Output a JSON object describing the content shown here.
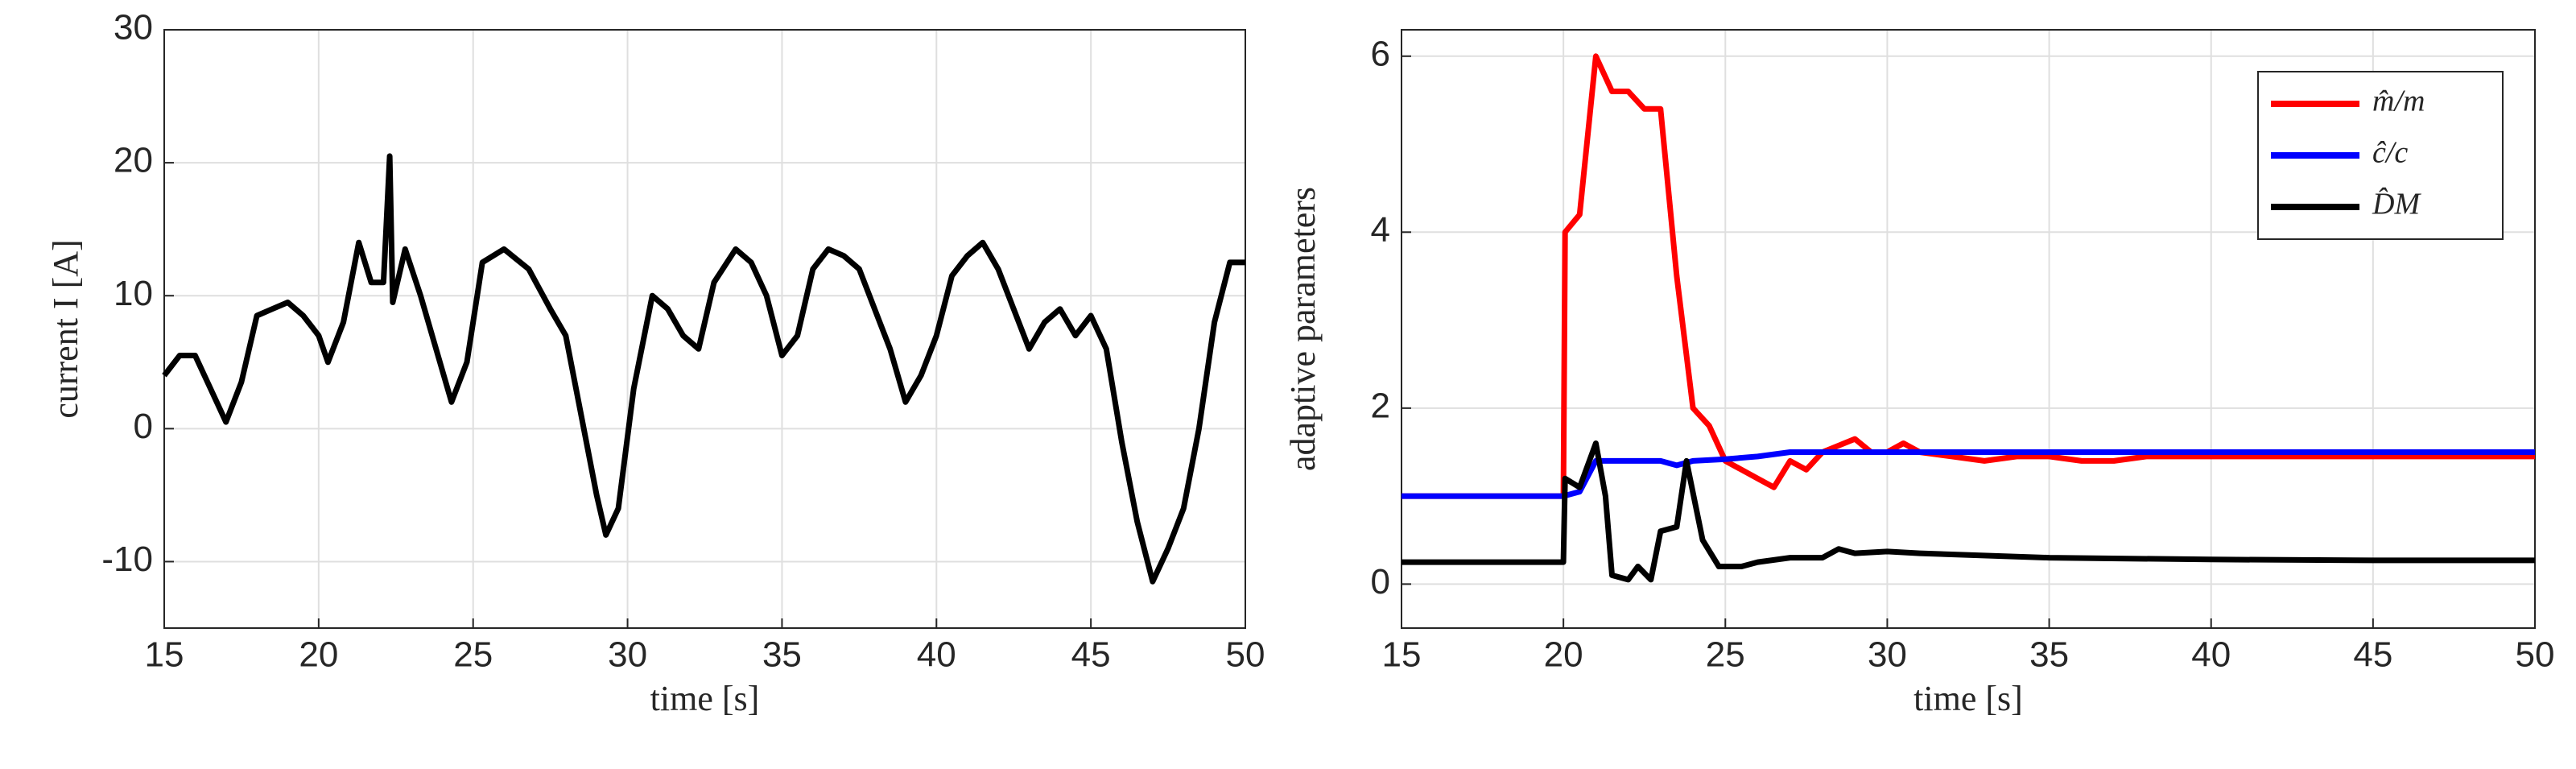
{
  "chart_data": [
    {
      "type": "line",
      "xlabel": "time [s]",
      "ylabel": "current I [A]",
      "xlim": [
        15,
        50
      ],
      "ylim": [
        -15,
        30
      ],
      "xticks": [
        15,
        20,
        25,
        30,
        35,
        40,
        45,
        50
      ],
      "yticks": [
        -10,
        0,
        10,
        20,
        30
      ],
      "grid": true,
      "series": [
        {
          "color": "#000000",
          "x": [
            15,
            15.5,
            16,
            16.5,
            17,
            17.5,
            18,
            18.5,
            19,
            19.5,
            20,
            20.3,
            20.8,
            21.3,
            21.7,
            22.1,
            22.3,
            22.4,
            22.8,
            23.3,
            23.8,
            24.3,
            24.8,
            25.3,
            26,
            26.8,
            27.5,
            28,
            28.5,
            29,
            29.3,
            29.7,
            30.2,
            30.8,
            31.3,
            31.8,
            32.3,
            32.8,
            33.5,
            34,
            34.5,
            35,
            35.5,
            36,
            36.5,
            37,
            37.5,
            38,
            38.5,
            39,
            39.5,
            40,
            40.5,
            41,
            41.5,
            42,
            42.5,
            43,
            43.5,
            44,
            44.5,
            45,
            45.5,
            46,
            46.5,
            47,
            47.5,
            48,
            48.5,
            49,
            49.5,
            50
          ],
          "values": [
            4,
            5.5,
            5.5,
            3,
            0.5,
            3.5,
            8.5,
            9,
            9.5,
            8.5,
            7,
            5,
            8,
            14,
            11,
            11,
            20.5,
            9.5,
            13.5,
            10,
            6,
            2,
            5,
            12.5,
            13.5,
            12,
            9,
            7,
            1,
            -5,
            -8,
            -6,
            3,
            10,
            9,
            7,
            6,
            11,
            13.5,
            12.5,
            10,
            5.5,
            7,
            12,
            13.5,
            13,
            12,
            9,
            6,
            2,
            4,
            7,
            11.5,
            13,
            14,
            12,
            9,
            6,
            8,
            9,
            7,
            8.5,
            6,
            -1,
            -7,
            -11.5,
            -9,
            -6,
            0,
            8,
            12.5,
            12.5
          ]
        }
      ]
    },
    {
      "type": "line",
      "xlabel": "time [s]",
      "ylabel": "adaptive parameters",
      "xlim": [
        15,
        50
      ],
      "ylim": [
        -0.5,
        6.3
      ],
      "xticks": [
        15,
        20,
        25,
        30,
        35,
        40,
        45,
        50
      ],
      "yticks": [
        0,
        2,
        4,
        6
      ],
      "grid": true,
      "legend": "upper right",
      "series": [
        {
          "name": "m̂/m",
          "color": "#ff0000",
          "x": [
            15,
            20,
            20.05,
            20.5,
            21,
            21.5,
            22,
            22.5,
            23,
            23.5,
            24,
            24.5,
            25,
            25.5,
            26,
            26.5,
            27,
            27.5,
            28,
            29,
            29.5,
            30,
            30.5,
            31,
            32,
            33,
            34,
            35,
            36,
            37,
            38,
            40,
            45,
            50
          ],
          "values": [
            1,
            1,
            4,
            4.2,
            6,
            5.6,
            5.6,
            5.4,
            5.4,
            3.5,
            2,
            1.8,
            1.4,
            1.3,
            1.2,
            1.1,
            1.4,
            1.3,
            1.5,
            1.65,
            1.5,
            1.5,
            1.6,
            1.5,
            1.45,
            1.4,
            1.45,
            1.45,
            1.4,
            1.4,
            1.45,
            1.45,
            1.45,
            1.45
          ]
        },
        {
          "name": "ĉ/c",
          "color": "#0000ff",
          "x": [
            15,
            20,
            20.5,
            21,
            23,
            23.5,
            24,
            25,
            26,
            27,
            50
          ],
          "values": [
            1,
            1,
            1.05,
            1.4,
            1.4,
            1.35,
            1.4,
            1.42,
            1.45,
            1.5,
            1.5
          ]
        },
        {
          "name": "D̂M",
          "color": "#000000",
          "x": [
            15,
            20,
            20.05,
            20.5,
            21,
            21.3,
            21.5,
            22,
            22.3,
            22.7,
            23,
            23.5,
            23.8,
            24.3,
            24.8,
            25.5,
            26,
            27,
            28,
            28.5,
            29,
            30,
            31,
            35,
            40,
            45,
            50
          ],
          "values": [
            0.25,
            0.25,
            1.2,
            1.1,
            1.6,
            1,
            0.1,
            0.05,
            0.2,
            0.05,
            0.6,
            0.65,
            1.4,
            0.5,
            0.2,
            0.2,
            0.25,
            0.3,
            0.3,
            0.4,
            0.35,
            0.37,
            0.35,
            0.3,
            0.28,
            0.27,
            0.27
          ]
        }
      ]
    }
  ]
}
